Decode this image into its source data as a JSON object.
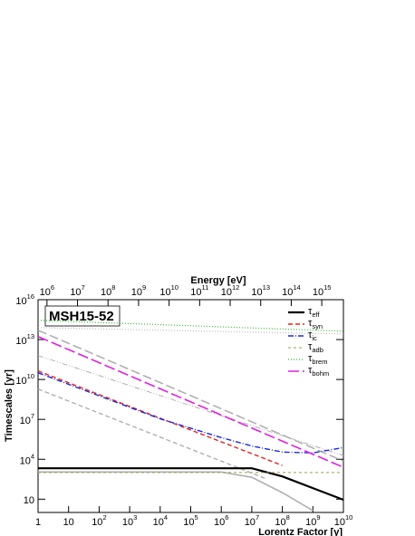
{
  "chart_data": {
    "type": "line",
    "title": "MSH15-52",
    "x_label": "Lorentz Factor [γ]",
    "y_label": "Timescales [yr]",
    "x2_label": "Energy [eV]",
    "log_x": true,
    "log_y": true,
    "legend": "top-right",
    "xlim": [
      1,
      10000000000
    ],
    "ylim": [
      1,
      10000000000000000
    ],
    "x2lim": [
      511000,
      5110000000000000
    ],
    "xticks": [
      1,
      10,
      {
        "value": 100,
        "label": "10^2"
      },
      {
        "value": 1000,
        "label": "10^3"
      },
      {
        "value": 10000,
        "label": "10^4"
      },
      {
        "value": 100000,
        "label": "10^5"
      },
      {
        "value": 1000000,
        "label": "10^6"
      },
      {
        "value": 10000000,
        "label": "10^7"
      },
      {
        "value": 100000000,
        "label": "10^8"
      },
      {
        "value": 1000000000,
        "label": "10^9"
      },
      {
        "value": 10000000000,
        "label": "10^10"
      }
    ],
    "yticks": [
      10,
      {
        "value": 10000,
        "label": "10^4"
      },
      {
        "value": 10000000,
        "label": "10^7"
      },
      {
        "value": 10000000000,
        "label": "10^10"
      },
      {
        "value": 10000000000000,
        "label": "10^13"
      },
      {
        "value": 10000000000000000,
        "label": "10^16"
      }
    ],
    "x2ticks": [
      {
        "value": 1000000,
        "label": "10^6"
      },
      {
        "value": 10000000,
        "label": "10^7"
      },
      {
        "value": 100000000,
        "label": "10^8"
      },
      {
        "value": 1000000000,
        "label": "10^9"
      },
      {
        "value": 10000000000,
        "label": "10^10"
      },
      {
        "value": 100000000000,
        "label": "10^11"
      },
      {
        "value": 1000000000000,
        "label": "10^12"
      },
      {
        "value": 10000000000000,
        "label": "10^13"
      },
      {
        "value": 100000000000000,
        "label": "10^14"
      },
      {
        "value": 1000000000000000,
        "label": "10^15"
      }
    ],
    "series": [
      {
        "color": "#b0b0b0",
        "dash": "10,4",
        "width": 1.6,
        "x": [
          1,
          10000000000
        ],
        "values": [
          50000000000000,
          7200
        ]
      },
      {
        "color": "#b0b0b0",
        "dash": "6,2,1,2,1,2",
        "width": 1,
        "x": [
          1,
          10000000000
        ],
        "values": [
          630000000000,
          19000
        ]
      },
      {
        "color": "#b0b0b0",
        "dash": "5,3",
        "width": 1.4,
        "x": [
          1,
          31600000
        ],
        "values": [
          1900000000,
          320
        ]
      },
      {
        "color": "#b0b0b0",
        "dash": "1,2",
        "width": 1,
        "x": [
          1,
          10000000000
        ],
        "values": [
          80000000000000,
          26000000000000
        ]
      },
      {
        "color": "#b0b0b0",
        "dash": "",
        "width": 1.6,
        "x": [
          1,
          1000000,
          10000000,
          100000000,
          1000000000
        ],
        "values": [
          1100,
          1100,
          440,
          31,
          1.4
        ]
      },
      {
        "name": "τ_eff",
        "color": "#000000",
        "dash": "",
        "width": 2.2,
        "x": [
          1,
          10000000,
          100000000,
          1000000000,
          10000000000
        ],
        "values": [
          2100,
          2100,
          510,
          68,
          9
        ]
      },
      {
        "name": "τ_syn",
        "color": "#e8231c",
        "dash": "5,3",
        "width": 1.4,
        "x": [
          1,
          100000000
        ],
        "values": [
          44000000000,
          3400
        ]
      },
      {
        "name": "τ_ic",
        "color": "#1a2adb",
        "dash": "6,2,1,2",
        "width": 1.4,
        "x": [
          1,
          10000,
          1000000,
          10000000,
          100000000,
          1000000000,
          10000000000
        ],
        "values": [
          32000000000,
          11000000,
          430000,
          100000,
          35000,
          30000,
          76000
        ]
      },
      {
        "name": "τ_adb",
        "color": "#9a9a55",
        "dash": "3,3",
        "width": 1,
        "x": [
          1,
          10000000000
        ],
        "values": [
          1000,
          1000
        ]
      },
      {
        "name": "τ_brem",
        "color": "#2fbf2f",
        "dash": "1,2",
        "width": 1.2,
        "x": [
          1,
          10000000000
        ],
        "values": [
          280000000000000,
          43000000000000
        ]
      },
      {
        "name": "τ_bohm",
        "color": "#e020e0",
        "dash": "12,4",
        "width": 1.6,
        "x": [
          1,
          10000000000
        ],
        "values": [
          17000000000000,
          2500
        ]
      }
    ]
  }
}
